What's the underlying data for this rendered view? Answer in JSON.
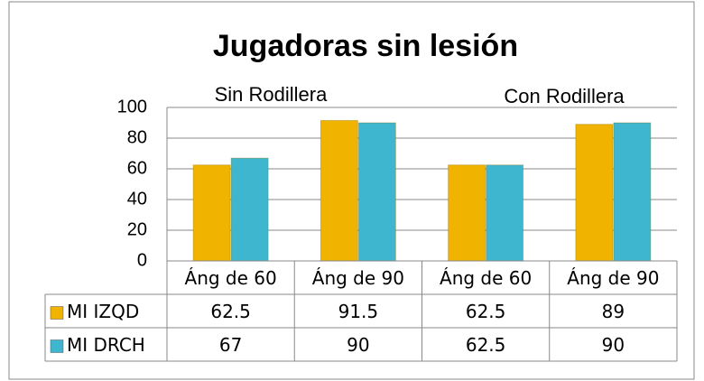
{
  "chart_data": {
    "type": "bar",
    "title": "Jugadoras sin lesión",
    "annotations": [
      "Sin Rodillera",
      "Con Rodillera"
    ],
    "categories": [
      "Áng de 60",
      "Áng de 90",
      "Áng de 60",
      "Áng de 90"
    ],
    "series": [
      {
        "name": "MI IZQD",
        "color": "#f0b400",
        "values": [
          62.5,
          91.5,
          62.5,
          89
        ]
      },
      {
        "name": "MI DRCH",
        "color": "#3fb6cf",
        "values": [
          67,
          90,
          62.5,
          90
        ]
      }
    ],
    "ylim": [
      0,
      100
    ],
    "yticks": [
      0,
      20,
      40,
      60,
      80,
      100
    ],
    "grid": true,
    "data_table": true
  }
}
